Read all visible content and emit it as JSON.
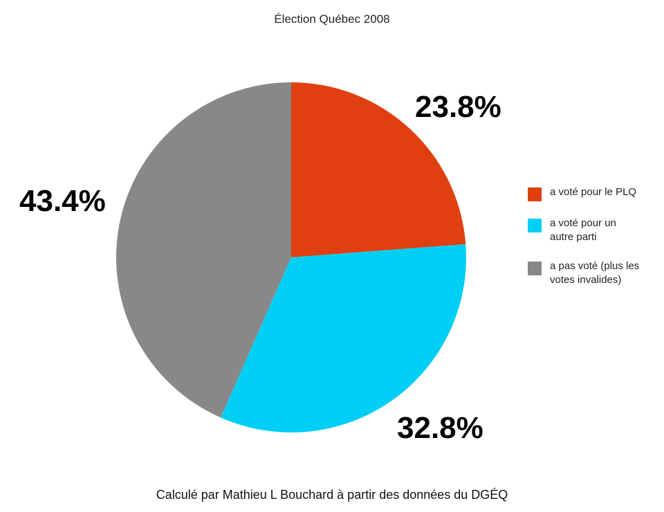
{
  "chart_data": {
    "type": "pie",
    "title": "Élection Québec 2008",
    "slices": [
      {
        "label": "a voté pour le PLQ",
        "value": 23.8,
        "value_label": "23.8%",
        "color": "#E04010"
      },
      {
        "label": "a voté pour un autre parti",
        "value": 32.8,
        "value_label": "32.8%",
        "color": "#00CFF5"
      },
      {
        "label": "a pas voté (plus les votes invalides)",
        "value": 43.4,
        "value_label": "43.4%",
        "color": "#888888"
      }
    ],
    "start_angle": "top",
    "direction": "clockwise",
    "legend_placement": "right"
  },
  "source_note": "Calculé par Mathieu L Bouchard à partir des données du DGÉQ"
}
